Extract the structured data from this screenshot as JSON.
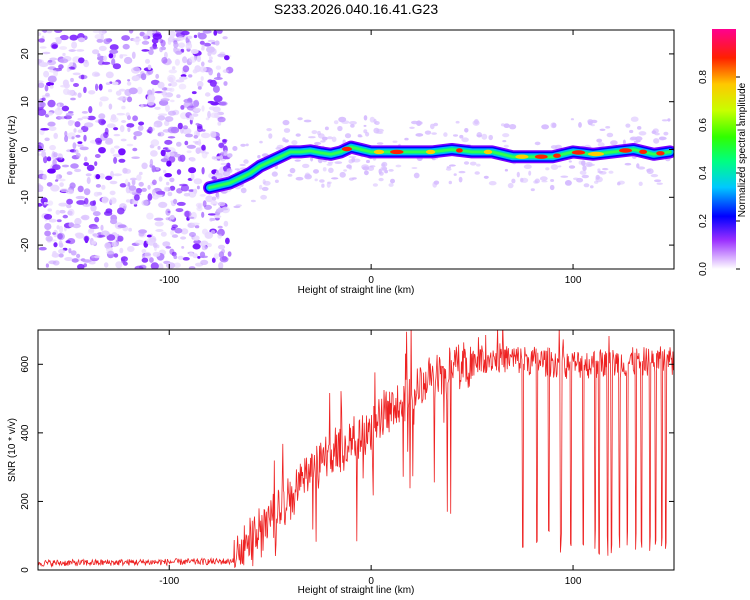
{
  "chart_data": [
    {
      "type": "heatmap",
      "title": "S233.2026.040.16.41.G23",
      "xlabel": "Height of straight line (km)",
      "ylabel": "Frequency (Hz)",
      "xlim": [
        -165,
        150
      ],
      "ylim": [
        -25,
        25
      ],
      "xticks": [
        -100,
        0,
        100
      ],
      "yticks": [
        -20,
        -10,
        0,
        10,
        20
      ],
      "noise_region_x": [
        -165,
        -75
      ],
      "ridge": {
        "x": [
          -80,
          -75,
          -70,
          -65,
          -60,
          -55,
          -50,
          -45,
          -40,
          -35,
          -30,
          -25,
          -20,
          -15,
          -10,
          -5,
          0,
          10,
          20,
          30,
          40,
          50,
          60,
          70,
          80,
          90,
          100,
          110,
          120,
          130,
          140,
          148
        ],
        "y": [
          -8,
          -7.5,
          -7,
          -6,
          -5,
          -3.5,
          -2.5,
          -1.5,
          -0.5,
          -0.5,
          -0.3,
          -0.7,
          -1,
          -0.5,
          0.5,
          0,
          -0.5,
          -0.5,
          -0.5,
          -0.5,
          0,
          -0.5,
          -0.5,
          -1.5,
          -1.5,
          -1.5,
          -0.5,
          -1,
          -0.5,
          0,
          -1,
          -0.5
        ]
      },
      "colorbar": {
        "label": "Normalized spectral amplitude",
        "range": [
          0,
          1
        ],
        "ticks": [
          "0.0",
          "0.2",
          "0.4",
          "0.6",
          "0.8"
        ]
      }
    },
    {
      "type": "line",
      "xlabel": "Height of straight line (km)",
      "ylabel": "SNR (10 * v/v)",
      "xlim": [
        -165,
        150
      ],
      "ylim": [
        0,
        700
      ],
      "xticks": [
        -100,
        0,
        100
      ],
      "yticks": [
        0,
        200,
        400,
        600
      ],
      "line_color": "#ee2222",
      "trend": {
        "x": [
          -165,
          -70,
          -65,
          -60,
          -50,
          -40,
          -30,
          -20,
          -10,
          0,
          10,
          20,
          30,
          40,
          50,
          60,
          80,
          100,
          150
        ],
        "y": [
          20,
          25,
          40,
          80,
          150,
          220,
          280,
          330,
          370,
          420,
          470,
          520,
          560,
          590,
          610,
          620,
          610,
          600,
          610
        ]
      },
      "dropouts_x": [
        75,
        82,
        88,
        94,
        99,
        105,
        111,
        113,
        117,
        119,
        123,
        127,
        131,
        134,
        138,
        141,
        144,
        146
      ]
    }
  ]
}
